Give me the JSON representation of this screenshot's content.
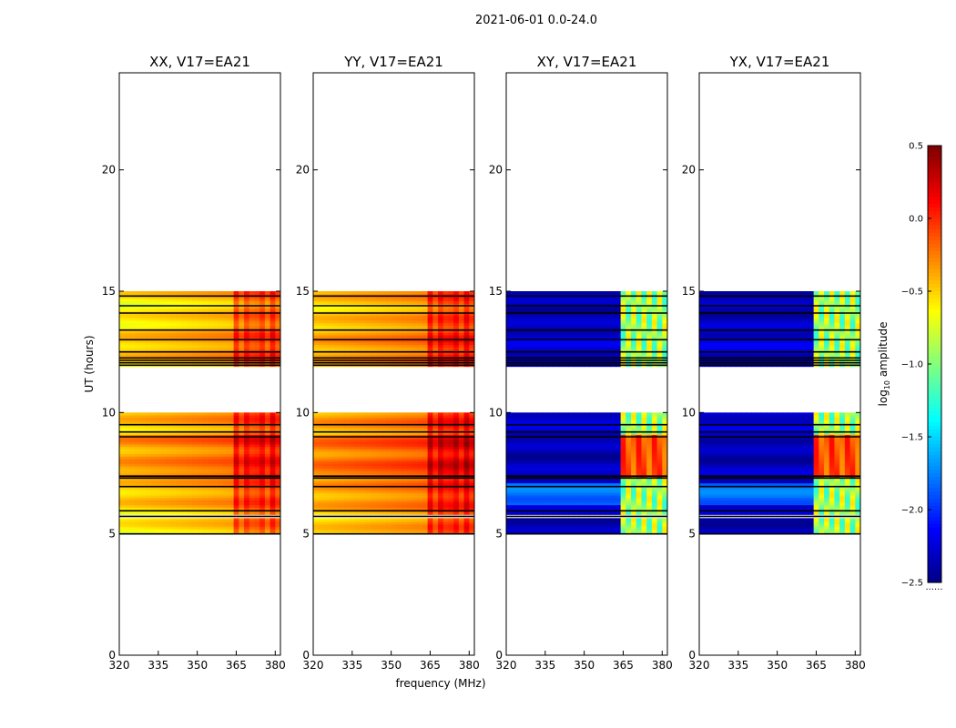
{
  "figure": {
    "suptitle": "2021-06-01 0.0-24.0",
    "ylabel": "UT (hours)",
    "xlabel": "frequency (MHz)",
    "colorbar_label": "log",
    "colorbar_label_sub": "10",
    "colorbar_label_rest": " amplitude",
    "colorbar_dots": "......"
  },
  "chart_data": {
    "type": "heatmap",
    "title": "2021-06-01 0.0-24.0",
    "xlabel": "frequency (MHz)",
    "ylabel": "UT (hours)",
    "xlim": [
      320,
      382
    ],
    "ylim": [
      0,
      24
    ],
    "xticks": [
      320,
      335,
      350,
      365,
      380
    ],
    "yticks": [
      0,
      5,
      10,
      15,
      20
    ],
    "panels": [
      {
        "title": "XX, V17=EA21",
        "polarization": "XX",
        "baseline": "V17=EA21",
        "base_log_amp": -0.55
      },
      {
        "title": "YY, V17=EA21",
        "polarization": "YY",
        "baseline": "V17=EA21",
        "base_log_amp": -0.45
      },
      {
        "title": "XY, V17=EA21",
        "polarization": "XY",
        "baseline": "V17=EA21",
        "base_log_amp": -2.3
      },
      {
        "title": "YX, V17=EA21",
        "polarization": "YX",
        "baseline": "V17=EA21",
        "base_log_amp": -2.3
      }
    ],
    "data_time_ranges_hours": [
      [
        5.0,
        5.65
      ],
      [
        5.8,
        10.0
      ],
      [
        11.9,
        15.0
      ]
    ],
    "flagged_rows_hours": [
      5.0,
      5.72,
      5.95,
      6.95,
      7.3,
      7.38,
      9.0,
      9.2,
      9.5,
      11.95,
      12.05,
      12.15,
      12.25,
      12.5,
      13.0,
      13.4,
      14.1,
      14.4,
      14.8
    ],
    "rfi_band_mhz": [
      363,
      381
    ],
    "colorbar": {
      "range": [
        -2.5,
        0.5
      ],
      "ticks": [
        0.5,
        0.0,
        -0.5,
        -1.0,
        -1.5,
        -2.0,
        -2.5
      ],
      "tick_labels": [
        "0.5",
        "0.0",
        "−0.5",
        "−1.0",
        "−1.5",
        "−2.0",
        "−2.5"
      ],
      "colormap": "jet",
      "label": "log10 amplitude"
    }
  }
}
